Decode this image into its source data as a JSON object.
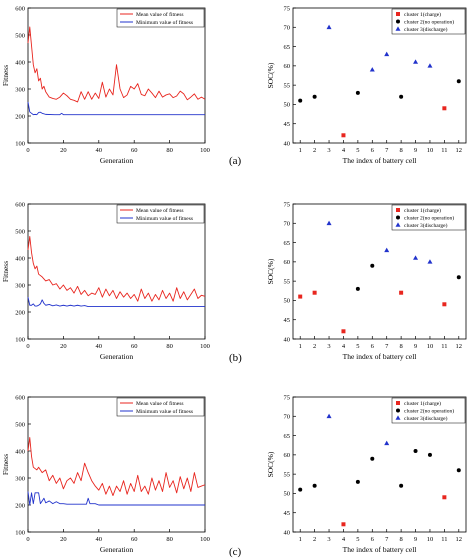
{
  "panel_labels": [
    "(a)",
    "(b)",
    "(c)"
  ],
  "chart_data": [
    {
      "type": "line",
      "panel": "(a)",
      "xlabel": "Generation",
      "ylabel": "Fitness",
      "xlim": [
        0,
        100
      ],
      "ylim": [
        100,
        600
      ],
      "xticks": [
        0,
        20,
        40,
        60,
        80,
        100
      ],
      "yticks": [
        100,
        200,
        300,
        400,
        500,
        600
      ],
      "legend": "top-right",
      "series": [
        {
          "name": "Mean value of fitness",
          "color": "#e8261f",
          "x": [
            0,
            1,
            2,
            3,
            4,
            5,
            6,
            7,
            8,
            9,
            10,
            12,
            14,
            16,
            18,
            20,
            22,
            24,
            26,
            28,
            30,
            32,
            34,
            36,
            38,
            40,
            42,
            44,
            46,
            48,
            50,
            52,
            54,
            56,
            58,
            60,
            62,
            64,
            66,
            68,
            70,
            72,
            74,
            76,
            78,
            80,
            82,
            84,
            86,
            88,
            90,
            92,
            94,
            96,
            98,
            100
          ],
          "y": [
            470,
            530,
            460,
            390,
            360,
            375,
            330,
            340,
            300,
            310,
            290,
            270,
            265,
            262,
            270,
            285,
            275,
            262,
            258,
            252,
            290,
            262,
            290,
            262,
            285,
            265,
            325,
            270,
            300,
            278,
            390,
            300,
            268,
            278,
            310,
            300,
            320,
            280,
            275,
            300,
            285,
            268,
            292,
            270,
            278,
            282,
            268,
            274,
            292,
            282,
            260,
            270,
            282,
            262,
            270,
            262
          ]
        },
        {
          "name": "Minimum value of fitness",
          "color": "#2233cc",
          "x": [
            0,
            1,
            2,
            3,
            4,
            5,
            6,
            7,
            8,
            10,
            15,
            18,
            19,
            20,
            22,
            30,
            40,
            50,
            60,
            70,
            80,
            90,
            100
          ],
          "y": [
            252,
            215,
            210,
            205,
            206,
            205,
            213,
            214,
            210,
            206,
            205,
            205,
            210,
            205,
            205,
            205,
            205,
            205,
            205,
            205,
            205,
            205,
            205
          ]
        }
      ]
    },
    {
      "type": "scatter",
      "panel": "(a)",
      "xlabel": "The index of battery cell",
      "ylabel": "SOC(%)",
      "xlim": [
        0.5,
        12.5
      ],
      "ylim": [
        40,
        75
      ],
      "xticks": [
        1,
        2,
        3,
        4,
        5,
        6,
        7,
        8,
        9,
        10,
        11,
        12
      ],
      "yticks": [
        40,
        45,
        50,
        55,
        60,
        65,
        70,
        75
      ],
      "legend": "top-right",
      "series": [
        {
          "name": "cluster 1(charge)",
          "marker": "square",
          "color": "#e8261f",
          "x": [
            4,
            11
          ],
          "y": [
            42,
            49
          ]
        },
        {
          "name": "cluster 2(no operation)",
          "marker": "circle",
          "color": "#000000",
          "x": [
            1,
            2,
            5,
            8,
            12
          ],
          "y": [
            51,
            52,
            53,
            52,
            56
          ]
        },
        {
          "name": "cluster 3(discharge)",
          "marker": "triangle",
          "color": "#2233cc",
          "x": [
            3,
            6,
            7,
            9,
            10
          ],
          "y": [
            70,
            59,
            63,
            61,
            60
          ]
        }
      ]
    },
    {
      "type": "line",
      "panel": "(b)",
      "xlabel": "Generation",
      "ylabel": "Fitness",
      "xlim": [
        0,
        100
      ],
      "ylim": [
        100,
        600
      ],
      "xticks": [
        0,
        20,
        40,
        60,
        80,
        100
      ],
      "yticks": [
        100,
        200,
        300,
        400,
        500,
        600
      ],
      "legend": "top-right",
      "series": [
        {
          "name": "Mean value of fitness",
          "color": "#e8261f",
          "x": [
            0,
            1,
            2,
            3,
            4,
            5,
            6,
            8,
            10,
            12,
            14,
            16,
            18,
            20,
            22,
            24,
            26,
            28,
            30,
            32,
            34,
            36,
            38,
            40,
            42,
            44,
            46,
            48,
            50,
            52,
            54,
            56,
            58,
            60,
            62,
            64,
            66,
            68,
            70,
            72,
            74,
            76,
            78,
            80,
            82,
            84,
            86,
            88,
            90,
            92,
            94,
            96,
            98,
            100
          ],
          "y": [
            430,
            480,
            420,
            380,
            360,
            370,
            340,
            330,
            315,
            320,
            300,
            305,
            285,
            300,
            280,
            290,
            270,
            295,
            265,
            280,
            260,
            270,
            265,
            290,
            255,
            285,
            260,
            280,
            250,
            275,
            255,
            270,
            250,
            265,
            240,
            285,
            250,
            270,
            240,
            265,
            245,
            280,
            250,
            270,
            240,
            290,
            250,
            275,
            245,
            265,
            285,
            250,
            262,
            258
          ]
        },
        {
          "name": "Minimum value of fitness",
          "color": "#2233cc",
          "x": [
            0,
            1,
            2,
            3,
            4,
            5,
            6,
            7,
            8,
            9,
            10,
            12,
            14,
            16,
            18,
            20,
            22,
            24,
            26,
            28,
            30,
            32,
            34,
            36,
            40,
            50,
            60,
            70,
            80,
            90,
            100
          ],
          "y": [
            255,
            225,
            225,
            230,
            222,
            222,
            225,
            230,
            245,
            232,
            225,
            228,
            223,
            226,
            222,
            225,
            222,
            225,
            222,
            225,
            222,
            224,
            220,
            220,
            220,
            220,
            220,
            220,
            220,
            220,
            220
          ]
        }
      ]
    },
    {
      "type": "scatter",
      "panel": "(b)",
      "xlabel": "The index of battery cell",
      "ylabel": "SOC(%)",
      "xlim": [
        0.5,
        12.5
      ],
      "ylim": [
        40,
        75
      ],
      "xticks": [
        1,
        2,
        3,
        4,
        5,
        6,
        7,
        8,
        9,
        10,
        11,
        12
      ],
      "yticks": [
        40,
        45,
        50,
        55,
        60,
        65,
        70,
        75
      ],
      "legend": "top-right",
      "series": [
        {
          "name": "cluster 1(charge)",
          "marker": "square",
          "color": "#e8261f",
          "x": [
            1,
            2,
            4,
            8,
            11
          ],
          "y": [
            51,
            52,
            42,
            52,
            49
          ]
        },
        {
          "name": "cluster 2(no operation)",
          "marker": "circle",
          "color": "#000000",
          "x": [
            5,
            6,
            12
          ],
          "y": [
            53,
            59,
            56
          ]
        },
        {
          "name": "cluster 3(discharge)",
          "marker": "triangle",
          "color": "#2233cc",
          "x": [
            3,
            7,
            9,
            10
          ],
          "y": [
            70,
            63,
            61,
            60
          ]
        }
      ]
    },
    {
      "type": "line",
      "panel": "(c)",
      "xlabel": "Generation",
      "ylabel": "Fitness",
      "xlim": [
        0,
        100
      ],
      "ylim": [
        100,
        600
      ],
      "xticks": [
        0,
        20,
        40,
        60,
        80,
        100
      ],
      "yticks": [
        100,
        200,
        300,
        400,
        500,
        600
      ],
      "legend": "top-right",
      "series": [
        {
          "name": "Mean value of fitness",
          "color": "#e8261f",
          "x": [
            0,
            1,
            2,
            3,
            4,
            5,
            6,
            8,
            10,
            12,
            14,
            16,
            18,
            20,
            22,
            24,
            26,
            28,
            30,
            32,
            34,
            36,
            38,
            40,
            42,
            44,
            46,
            48,
            50,
            52,
            54,
            56,
            58,
            60,
            62,
            64,
            66,
            68,
            70,
            72,
            74,
            76,
            78,
            80,
            82,
            84,
            86,
            88,
            90,
            92,
            94,
            96,
            98,
            100
          ],
          "y": [
            400,
            450,
            380,
            340,
            335,
            330,
            340,
            320,
            330,
            290,
            310,
            280,
            300,
            260,
            290,
            300,
            280,
            320,
            290,
            355,
            320,
            290,
            270,
            255,
            280,
            240,
            270,
            235,
            270,
            250,
            290,
            240,
            280,
            250,
            310,
            250,
            270,
            240,
            300,
            255,
            290,
            250,
            320,
            265,
            290,
            245,
            305,
            260,
            300,
            250,
            320,
            265,
            270,
            275
          ]
        },
        {
          "name": "Minimum value of fitness",
          "color": "#2233cc",
          "x": [
            0,
            1,
            2,
            3,
            4,
            5,
            6,
            7,
            8,
            9,
            10,
            12,
            14,
            16,
            18,
            20,
            22,
            24,
            30,
            33,
            34,
            35,
            38,
            40,
            50,
            60,
            70,
            80,
            90,
            100
          ],
          "y": [
            250,
            200,
            245,
            205,
            245,
            245,
            245,
            205,
            215,
            225,
            208,
            215,
            205,
            212,
            205,
            205,
            203,
            203,
            203,
            203,
            225,
            205,
            205,
            200,
            200,
            200,
            200,
            200,
            200,
            200
          ]
        }
      ]
    },
    {
      "type": "scatter",
      "panel": "(c)",
      "xlabel": "The index of battery cell",
      "ylabel": "SOC(%)",
      "xlim": [
        0.5,
        12.5
      ],
      "ylim": [
        40,
        75
      ],
      "xticks": [
        1,
        2,
        3,
        4,
        5,
        6,
        7,
        8,
        9,
        10,
        11,
        12
      ],
      "yticks": [
        40,
        45,
        50,
        55,
        60,
        65,
        70,
        75
      ],
      "legend": "top-right",
      "series": [
        {
          "name": "cluster 1(charge)",
          "marker": "square",
          "color": "#e8261f",
          "x": [
            4,
            11
          ],
          "y": [
            42,
            49
          ]
        },
        {
          "name": "cluster 2(no operation)",
          "marker": "circle",
          "color": "#000000",
          "x": [
            1,
            2,
            5,
            6,
            8,
            9,
            10,
            12
          ],
          "y": [
            51,
            52,
            53,
            59,
            52,
            61,
            60,
            56
          ]
        },
        {
          "name": "cluster 3(discharge)",
          "marker": "triangle",
          "color": "#2233cc",
          "x": [
            3,
            7
          ],
          "y": [
            70,
            63
          ]
        }
      ]
    }
  ]
}
